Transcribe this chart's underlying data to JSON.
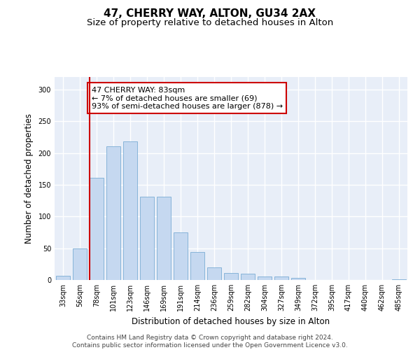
{
  "title": "47, CHERRY WAY, ALTON, GU34 2AX",
  "subtitle": "Size of property relative to detached houses in Alton",
  "xlabel": "Distribution of detached houses by size in Alton",
  "ylabel": "Number of detached properties",
  "bar_labels": [
    "33sqm",
    "56sqm",
    "78sqm",
    "101sqm",
    "123sqm",
    "146sqm",
    "169sqm",
    "191sqm",
    "214sqm",
    "236sqm",
    "259sqm",
    "282sqm",
    "304sqm",
    "327sqm",
    "349sqm",
    "372sqm",
    "395sqm",
    "417sqm",
    "440sqm",
    "462sqm",
    "485sqm"
  ],
  "bar_values": [
    7,
    50,
    161,
    211,
    218,
    131,
    131,
    75,
    44,
    20,
    11,
    10,
    6,
    6,
    3,
    0,
    0,
    0,
    0,
    0,
    1
  ],
  "bar_color": "#c5d8f0",
  "bar_edge_color": "#7badd4",
  "highlight_color": "#cc0000",
  "annotation_text": "47 CHERRY WAY: 83sqm\n← 7% of detached houses are smaller (69)\n93% of semi-detached houses are larger (878) →",
  "annotation_box_color": "#ffffff",
  "annotation_box_edge": "#cc0000",
  "ylim": [
    0,
    320
  ],
  "yticks": [
    0,
    50,
    100,
    150,
    200,
    250,
    300
  ],
  "background_color": "#e8eef8",
  "grid_color": "#ffffff",
  "footer_line1": "Contains HM Land Registry data © Crown copyright and database right 2024.",
  "footer_line2": "Contains public sector information licensed under the Open Government Licence v3.0.",
  "title_fontsize": 11,
  "subtitle_fontsize": 9.5,
  "axis_label_fontsize": 8.5,
  "tick_fontsize": 7,
  "annotation_fontsize": 8,
  "footer_fontsize": 6.5
}
